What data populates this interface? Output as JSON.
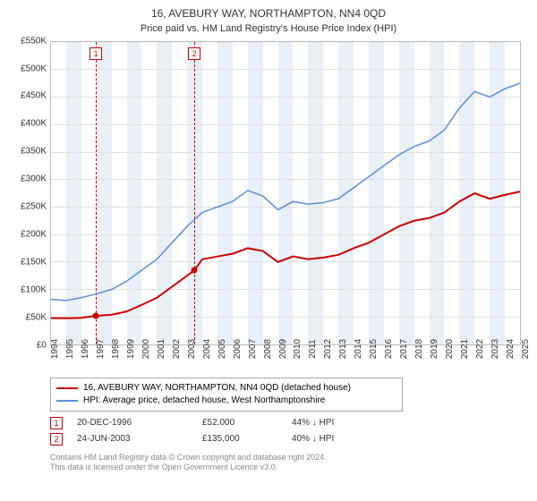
{
  "title": "16, AVEBURY WAY, NORTHAMPTON, NN4 0QD",
  "subtitle": "Price paid vs. HM Land Registry's House Price Index (HPI)",
  "chart": {
    "type": "line",
    "background_color": "#ffffff",
    "grid_color": "#e0e0e0",
    "border_color": "#bbbbbb",
    "band_color": "#e9f0f7",
    "xlim": [
      1994,
      2025
    ],
    "ylim": [
      0,
      550000
    ],
    "ytick_step": 50000,
    "yticks": [
      "£0",
      "£50K",
      "£100K",
      "£150K",
      "£200K",
      "£250K",
      "£300K",
      "£350K",
      "£400K",
      "£450K",
      "£500K",
      "£550K"
    ],
    "xticks": [
      1994,
      1995,
      1996,
      1997,
      1998,
      1999,
      2000,
      2001,
      2002,
      2003,
      2004,
      2005,
      2006,
      2007,
      2008,
      2009,
      2010,
      2011,
      2012,
      2013,
      2014,
      2015,
      2016,
      2017,
      2018,
      2019,
      2020,
      2021,
      2022,
      2023,
      2024,
      2025
    ],
    "label_fontsize": 10,
    "title_fontsize": 12,
    "series": [
      {
        "name": "price_paid",
        "label": "16, AVEBURY WAY, NORTHAMPTON, NN4 0QD (detached house)",
        "color": "#cc0000",
        "line_width": 2,
        "data": [
          [
            1994,
            48000
          ],
          [
            1995,
            47500
          ],
          [
            1996,
            48500
          ],
          [
            1996.97,
            52000
          ],
          [
            1998,
            54000
          ],
          [
            1999,
            60000
          ],
          [
            2000,
            72000
          ],
          [
            2001,
            85000
          ],
          [
            2002,
            105000
          ],
          [
            2003.48,
            135000
          ],
          [
            2004,
            155000
          ],
          [
            2005,
            160000
          ],
          [
            2006,
            165000
          ],
          [
            2007,
            175000
          ],
          [
            2008,
            170000
          ],
          [
            2009,
            150000
          ],
          [
            2010,
            160000
          ],
          [
            2011,
            155000
          ],
          [
            2012,
            158000
          ],
          [
            2013,
            163000
          ],
          [
            2014,
            175000
          ],
          [
            2015,
            185000
          ],
          [
            2016,
            200000
          ],
          [
            2017,
            215000
          ],
          [
            2018,
            225000
          ],
          [
            2019,
            230000
          ],
          [
            2020,
            240000
          ],
          [
            2021,
            260000
          ],
          [
            2022,
            275000
          ],
          [
            2023,
            265000
          ],
          [
            2024,
            272000
          ],
          [
            2025,
            278000
          ]
        ]
      },
      {
        "name": "hpi",
        "label": "HPI: Average price, detached house, West Northamptonshire",
        "color": "#5b8fd6",
        "line_width": 1.5,
        "data": [
          [
            1994,
            82000
          ],
          [
            1995,
            80000
          ],
          [
            1996,
            85000
          ],
          [
            1997,
            92000
          ],
          [
            1998,
            100000
          ],
          [
            1999,
            115000
          ],
          [
            2000,
            135000
          ],
          [
            2001,
            155000
          ],
          [
            2002,
            185000
          ],
          [
            2003,
            215000
          ],
          [
            2004,
            240000
          ],
          [
            2005,
            250000
          ],
          [
            2006,
            260000
          ],
          [
            2007,
            280000
          ],
          [
            2008,
            270000
          ],
          [
            2009,
            245000
          ],
          [
            2010,
            260000
          ],
          [
            2011,
            255000
          ],
          [
            2012,
            258000
          ],
          [
            2013,
            265000
          ],
          [
            2014,
            285000
          ],
          [
            2015,
            305000
          ],
          [
            2016,
            325000
          ],
          [
            2017,
            345000
          ],
          [
            2018,
            360000
          ],
          [
            2019,
            370000
          ],
          [
            2020,
            390000
          ],
          [
            2021,
            430000
          ],
          [
            2022,
            460000
          ],
          [
            2023,
            450000
          ],
          [
            2024,
            465000
          ],
          [
            2025,
            475000
          ]
        ]
      }
    ],
    "sale_markers": [
      {
        "n": "1",
        "x": 1996.97,
        "y": 52000
      },
      {
        "n": "2",
        "x": 2003.48,
        "y": 135000
      }
    ]
  },
  "legend": {
    "items": [
      {
        "color": "#cc0000",
        "label": "16, AVEBURY WAY, NORTHAMPTON, NN4 0QD (detached house)"
      },
      {
        "color": "#5b8fd6",
        "label": "HPI: Average price, detached house, West Northamptonshire"
      }
    ]
  },
  "marker_rows": [
    {
      "n": "1",
      "date": "20-DEC-1996",
      "price": "£52,000",
      "pct": "44% ↓ HPI"
    },
    {
      "n": "2",
      "date": "24-JUN-2003",
      "price": "£135,000",
      "pct": "40% ↓ HPI"
    }
  ],
  "footer_line1": "Contains HM Land Registry data © Crown copyright and database right 2024.",
  "footer_line2": "This data is licensed under the Open Government Licence v3.0."
}
